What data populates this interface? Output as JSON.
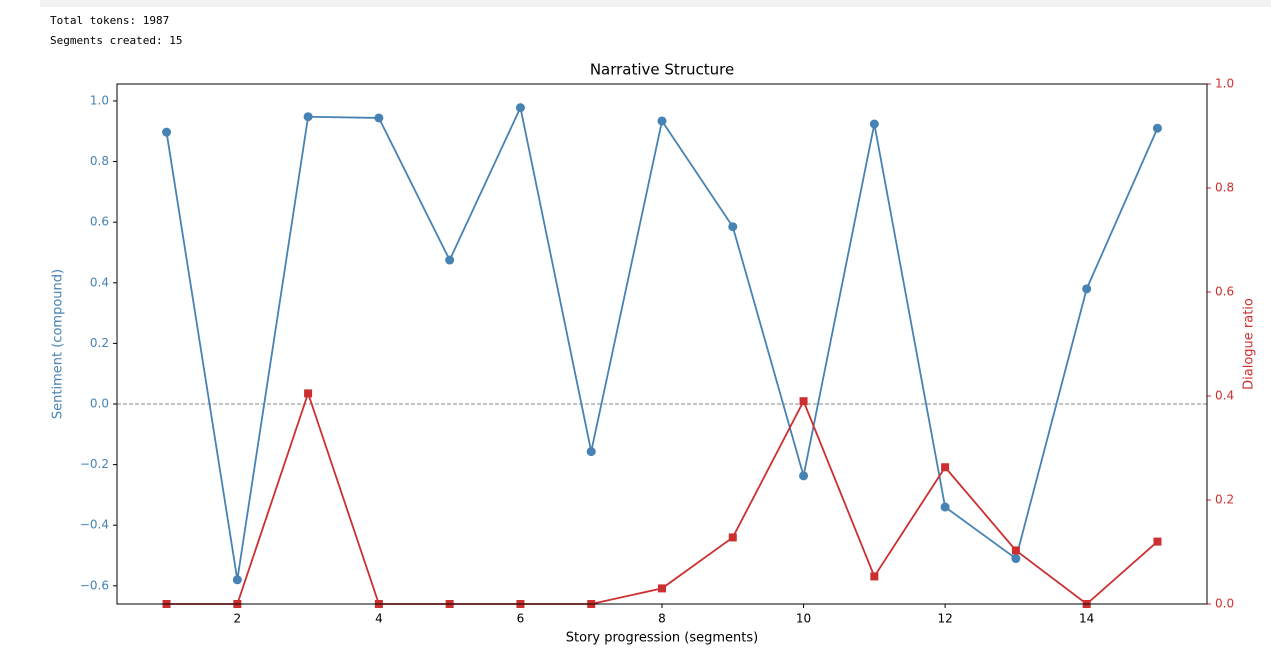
{
  "output": {
    "lines": [
      "Total tokens: 1987",
      "Segments created: 15"
    ]
  },
  "chart_data": {
    "type": "line",
    "title": "Narrative Structure",
    "x_label": "Story progression (segments)",
    "y_label": "Sentiment (compound)",
    "y2_label": "Dialogue ratio",
    "x": [
      1,
      2,
      3,
      4,
      5,
      6,
      7,
      8,
      9,
      10,
      11,
      12,
      13,
      14,
      15
    ],
    "series": [
      {
        "name": "Sentiment",
        "color": "#4682b4",
        "marker": "circle",
        "values": [
          0.897,
          -0.58,
          0.948,
          0.944,
          0.475,
          0.978,
          -0.157,
          0.934,
          0.585,
          -0.237,
          0.924,
          -0.34,
          -0.51,
          0.38,
          0.91
        ]
      },
      {
        "name": "Dialogue ratio",
        "color": "#cc2f2f",
        "marker": "square",
        "axis": "y2",
        "values": [
          0,
          0,
          0.405,
          0,
          0,
          0,
          0,
          0.03,
          0.128,
          0.39,
          0.053,
          0.263,
          0.103,
          0,
          0.12
        ]
      }
    ],
    "xlim": [
      0.3,
      15.7
    ],
    "xticks": [
      2,
      4,
      6,
      8,
      10,
      12,
      14
    ],
    "ylim": [
      -0.66,
      1.056
    ],
    "yticks": [
      {
        "value": -0.6,
        "label": "−0.6"
      },
      {
        "value": -0.4,
        "label": "−0.4"
      },
      {
        "value": -0.2,
        "label": "−0.2"
      },
      {
        "value": 0,
        "label": "0.0"
      },
      0.2,
      0.4,
      0.6,
      0.8,
      {
        "value": 1,
        "label": "1.0"
      }
    ],
    "y2lim": [
      0,
      1
    ],
    "y2ticks": [
      {
        "value": 0,
        "label": "0.0"
      },
      0.2,
      0.4,
      0.6,
      0.8,
      {
        "value": 1,
        "label": "1.0"
      }
    ],
    "zero_line": 0
  }
}
